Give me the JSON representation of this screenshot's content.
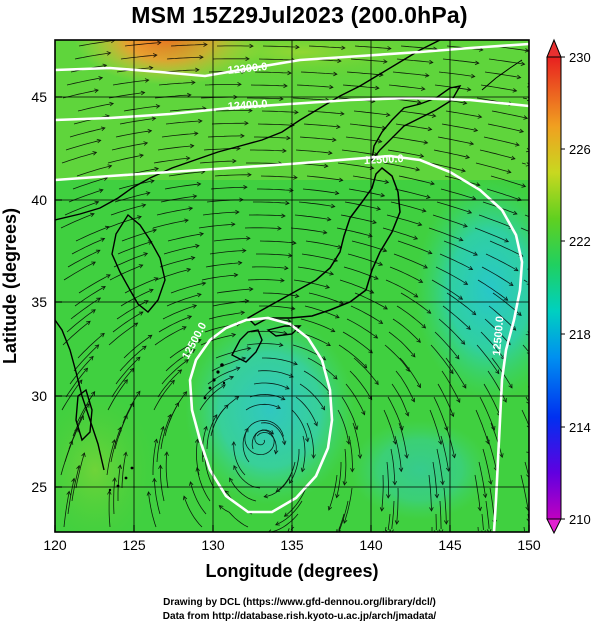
{
  "title": "MSM 15Z29Jul2023 (200.0hPa)",
  "xlabel": "Longitude (degrees)",
  "ylabel": "Latitude  (degrees)",
  "x_ticks": [
    "120",
    "125",
    "130",
    "135",
    "140",
    "145",
    "150"
  ],
  "y_ticks": [
    "25",
    "30",
    "35",
    "40",
    "45"
  ],
  "colorbar_ticks": [
    "210",
    "214",
    "218",
    "222",
    "226",
    "230"
  ],
  "contour_labels": [
    "12300.0",
    "12400.0",
    "12500.0",
    "12500.0",
    "12500.0"
  ],
  "credit_line1": "Drawing by DCL (https://www.gfd-dennou.org/library/dcl/)",
  "credit_line2": "Data from http://database.rish.kyoto-u.ac.jp/arch/jmadata/",
  "chart_data": {
    "type": "heatmap",
    "title": "MSM 15Z29Jul2023 (200.0hPa)",
    "xlabel": "Longitude (degrees)",
    "ylabel": "Latitude  (degrees)",
    "xlim": [
      120,
      150
    ],
    "ylim": [
      22.4,
      47.6
    ],
    "x_ticks": [
      120,
      125,
      130,
      135,
      140,
      145,
      150
    ],
    "y_ticks": [
      25,
      30,
      35,
      40,
      45
    ],
    "colorbar": {
      "min": 210,
      "max": 230,
      "ticks": [
        210,
        214,
        218,
        222,
        226,
        230
      ]
    },
    "contours": [
      {
        "label": "12300.0",
        "level": 12300.0
      },
      {
        "label": "12400.0",
        "level": 12400.0
      },
      {
        "label": "12500.0",
        "level": 12500.0
      }
    ],
    "grid": true,
    "overlay": "streamlines",
    "field": "temperature (K)"
  },
  "colors": {
    "field_high": "#f08020",
    "field_mid": "#30d030",
    "field_low": "#30c8b0",
    "streamline": "#000000",
    "contour": "#ffffff",
    "coastline": "#000000"
  }
}
